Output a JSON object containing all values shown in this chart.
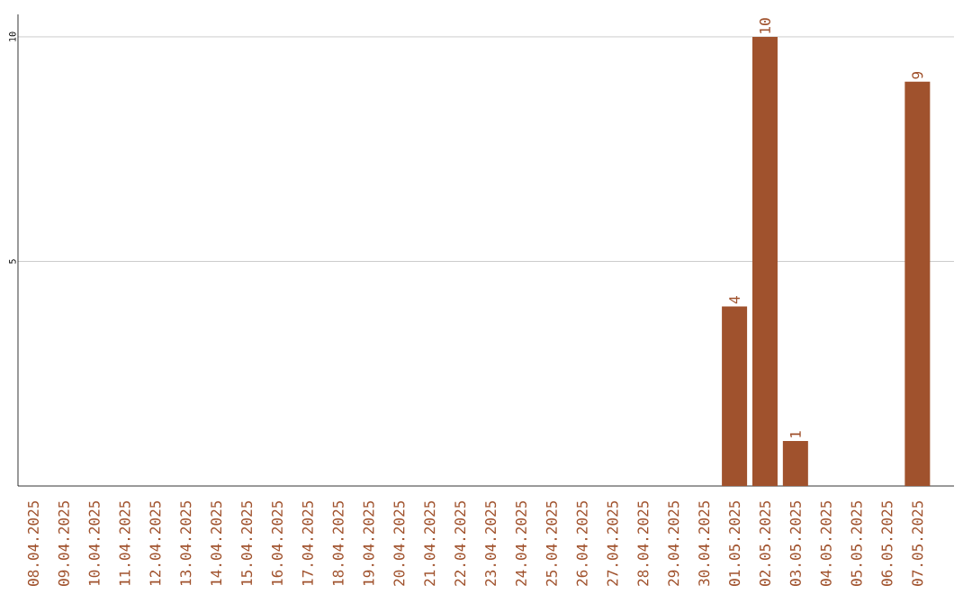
{
  "chart_data": {
    "type": "bar",
    "categories": [
      "08.04.2025",
      "09.04.2025",
      "10.04.2025",
      "11.04.2025",
      "12.04.2025",
      "13.04.2025",
      "14.04.2025",
      "15.04.2025",
      "16.04.2025",
      "17.04.2025",
      "18.04.2025",
      "19.04.2025",
      "20.04.2025",
      "21.04.2025",
      "22.04.2025",
      "23.04.2025",
      "24.04.2025",
      "25.04.2025",
      "26.04.2025",
      "27.04.2025",
      "28.04.2025",
      "29.04.2025",
      "30.04.2025",
      "01.05.2025",
      "02.05.2025",
      "03.05.2025",
      "04.05.2025",
      "05.05.2025",
      "06.05.2025",
      "07.05.2025"
    ],
    "values": [
      0,
      0,
      0,
      0,
      0,
      0,
      0,
      0,
      0,
      0,
      0,
      0,
      0,
      0,
      0,
      0,
      0,
      0,
      0,
      0,
      0,
      0,
      0,
      4,
      10,
      1,
      0,
      0,
      0,
      9
    ],
    "value_labels": [
      null,
      null,
      null,
      null,
      null,
      null,
      null,
      null,
      null,
      null,
      null,
      null,
      null,
      null,
      null,
      null,
      null,
      null,
      null,
      null,
      null,
      null,
      null,
      "4",
      "10",
      "1",
      null,
      null,
      null,
      "9"
    ],
    "color": "#a0522d",
    "ylim": [
      0,
      10.5
    ],
    "yticks": [
      5,
      10
    ],
    "grid": "y"
  }
}
